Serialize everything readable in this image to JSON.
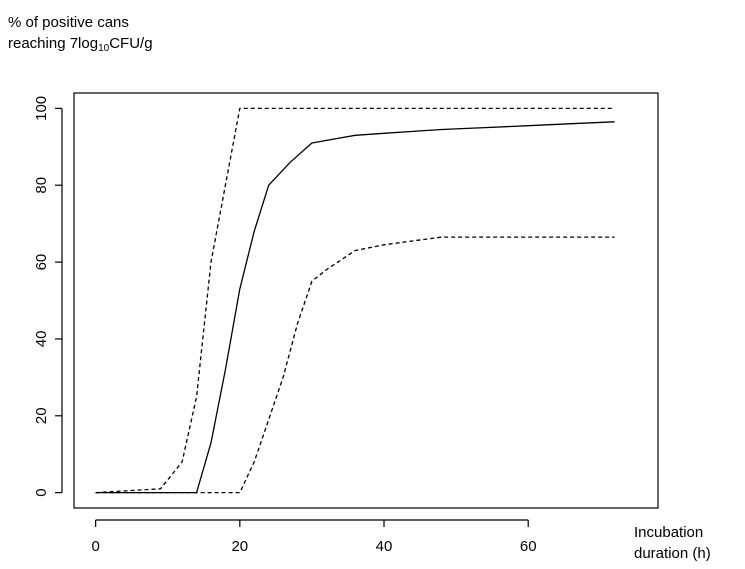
{
  "chart_data": {
    "type": "line",
    "ylabel_line1": "% of positive cans",
    "ylabel_line2_pre": "reaching 7log",
    "ylabel_line2_sub": "10",
    "ylabel_line2_post": "CFU/g",
    "xlabel_line1": "Incubation",
    "xlabel_line2": "duration (h)",
    "xlim": [
      -3,
      78
    ],
    "ylim": [
      -4,
      104
    ],
    "xticks": [
      0,
      20,
      40,
      60
    ],
    "yticks": [
      0,
      20,
      40,
      60,
      80,
      100
    ],
    "grid": false,
    "series": [
      {
        "style": "solid",
        "x": [
          0,
          14,
          16,
          18,
          20,
          22,
          24,
          27,
          30,
          33,
          36,
          40,
          44,
          48,
          54,
          60,
          66,
          72
        ],
        "y": [
          0,
          0,
          13,
          32,
          53,
          68,
          80,
          86,
          91,
          92,
          93,
          93.5,
          94,
          94.5,
          95,
          95.5,
          96,
          96.5
        ]
      },
      {
        "style": "dashed",
        "x": [
          0,
          9,
          12,
          14,
          16,
          18,
          20,
          72
        ],
        "y": [
          0,
          1,
          8,
          25,
          60,
          80,
          100,
          100
        ]
      },
      {
        "style": "dashed",
        "x": [
          0,
          20,
          22,
          24,
          26,
          28,
          30,
          32,
          36,
          40,
          44,
          48,
          72
        ],
        "y": [
          0,
          0,
          8,
          19,
          30,
          44,
          55,
          58,
          63,
          64.5,
          65.5,
          66.5,
          66.5
        ]
      }
    ]
  }
}
